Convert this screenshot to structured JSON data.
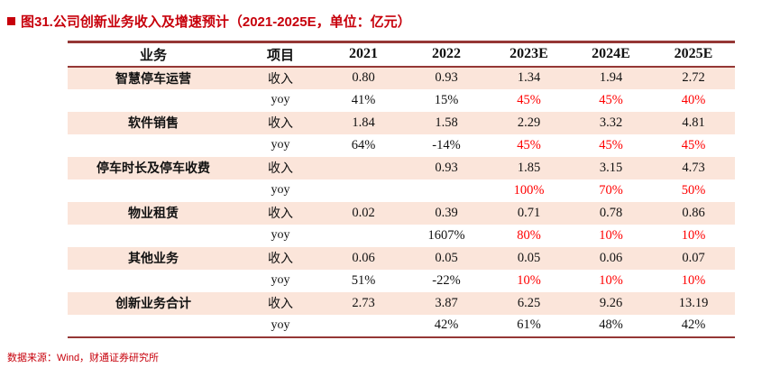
{
  "title": "图31.公司创新业务收入及增速预计（2021-2025E，单位：亿元）",
  "source": "数据来源：Wind，财通证券研究所",
  "colors": {
    "accent_red": "#c7000b",
    "forecast_red": "#ff0000",
    "stripe_pink": "#fbe5da",
    "border_red": "#953735"
  },
  "chart_data": {
    "type": "table",
    "title": "公司创新业务收入及增速预计",
    "unit": "亿元",
    "headers": [
      "业务",
      "项目",
      "2021",
      "2022",
      "2023E",
      "2024E",
      "2025E"
    ],
    "groups": [
      {
        "name": "智慧停车运营",
        "rows": [
          {
            "label": "收入",
            "values": [
              "0.80",
              "0.93",
              "1.34",
              "1.94",
              "2.72"
            ],
            "red": [
              false,
              false,
              false,
              false,
              false
            ]
          },
          {
            "label": "yoy",
            "values": [
              "41%",
              "15%",
              "45%",
              "45%",
              "40%"
            ],
            "red": [
              false,
              false,
              true,
              true,
              true
            ]
          }
        ]
      },
      {
        "name": "软件销售",
        "rows": [
          {
            "label": "收入",
            "values": [
              "1.84",
              "1.58",
              "2.29",
              "3.32",
              "4.81"
            ],
            "red": [
              false,
              false,
              false,
              false,
              false
            ]
          },
          {
            "label": "yoy",
            "values": [
              "64%",
              "-14%",
              "45%",
              "45%",
              "45%"
            ],
            "red": [
              false,
              false,
              true,
              true,
              true
            ]
          }
        ]
      },
      {
        "name": "停车时长及停车收费",
        "rows": [
          {
            "label": "收入",
            "values": [
              "",
              "0.93",
              "1.85",
              "3.15",
              "4.73"
            ],
            "red": [
              false,
              false,
              false,
              false,
              false
            ]
          },
          {
            "label": "yoy",
            "values": [
              "",
              "",
              "100%",
              "70%",
              "50%"
            ],
            "red": [
              false,
              false,
              true,
              true,
              true
            ]
          }
        ]
      },
      {
        "name": "物业租赁",
        "rows": [
          {
            "label": "收入",
            "values": [
              "0.02",
              "0.39",
              "0.71",
              "0.78",
              "0.86"
            ],
            "red": [
              false,
              false,
              false,
              false,
              false
            ]
          },
          {
            "label": "yoy",
            "values": [
              "",
              "1607%",
              "80%",
              "10%",
              "10%"
            ],
            "red": [
              false,
              false,
              true,
              true,
              true
            ]
          }
        ]
      },
      {
        "name": "其他业务",
        "rows": [
          {
            "label": "收入",
            "values": [
              "0.06",
              "0.05",
              "0.05",
              "0.06",
              "0.07"
            ],
            "red": [
              false,
              false,
              false,
              false,
              false
            ]
          },
          {
            "label": "yoy",
            "values": [
              "51%",
              "-22%",
              "10%",
              "10%",
              "10%"
            ],
            "red": [
              false,
              false,
              true,
              true,
              true
            ]
          }
        ]
      },
      {
        "name": "创新业务合计",
        "rows": [
          {
            "label": "收入",
            "values": [
              "2.73",
              "3.87",
              "6.25",
              "9.26",
              "13.19"
            ],
            "red": [
              false,
              false,
              false,
              false,
              false
            ]
          },
          {
            "label": "yoy",
            "values": [
              "",
              "42%",
              "61%",
              "48%",
              "42%"
            ],
            "red": [
              false,
              false,
              false,
              false,
              false
            ]
          }
        ]
      }
    ]
  }
}
